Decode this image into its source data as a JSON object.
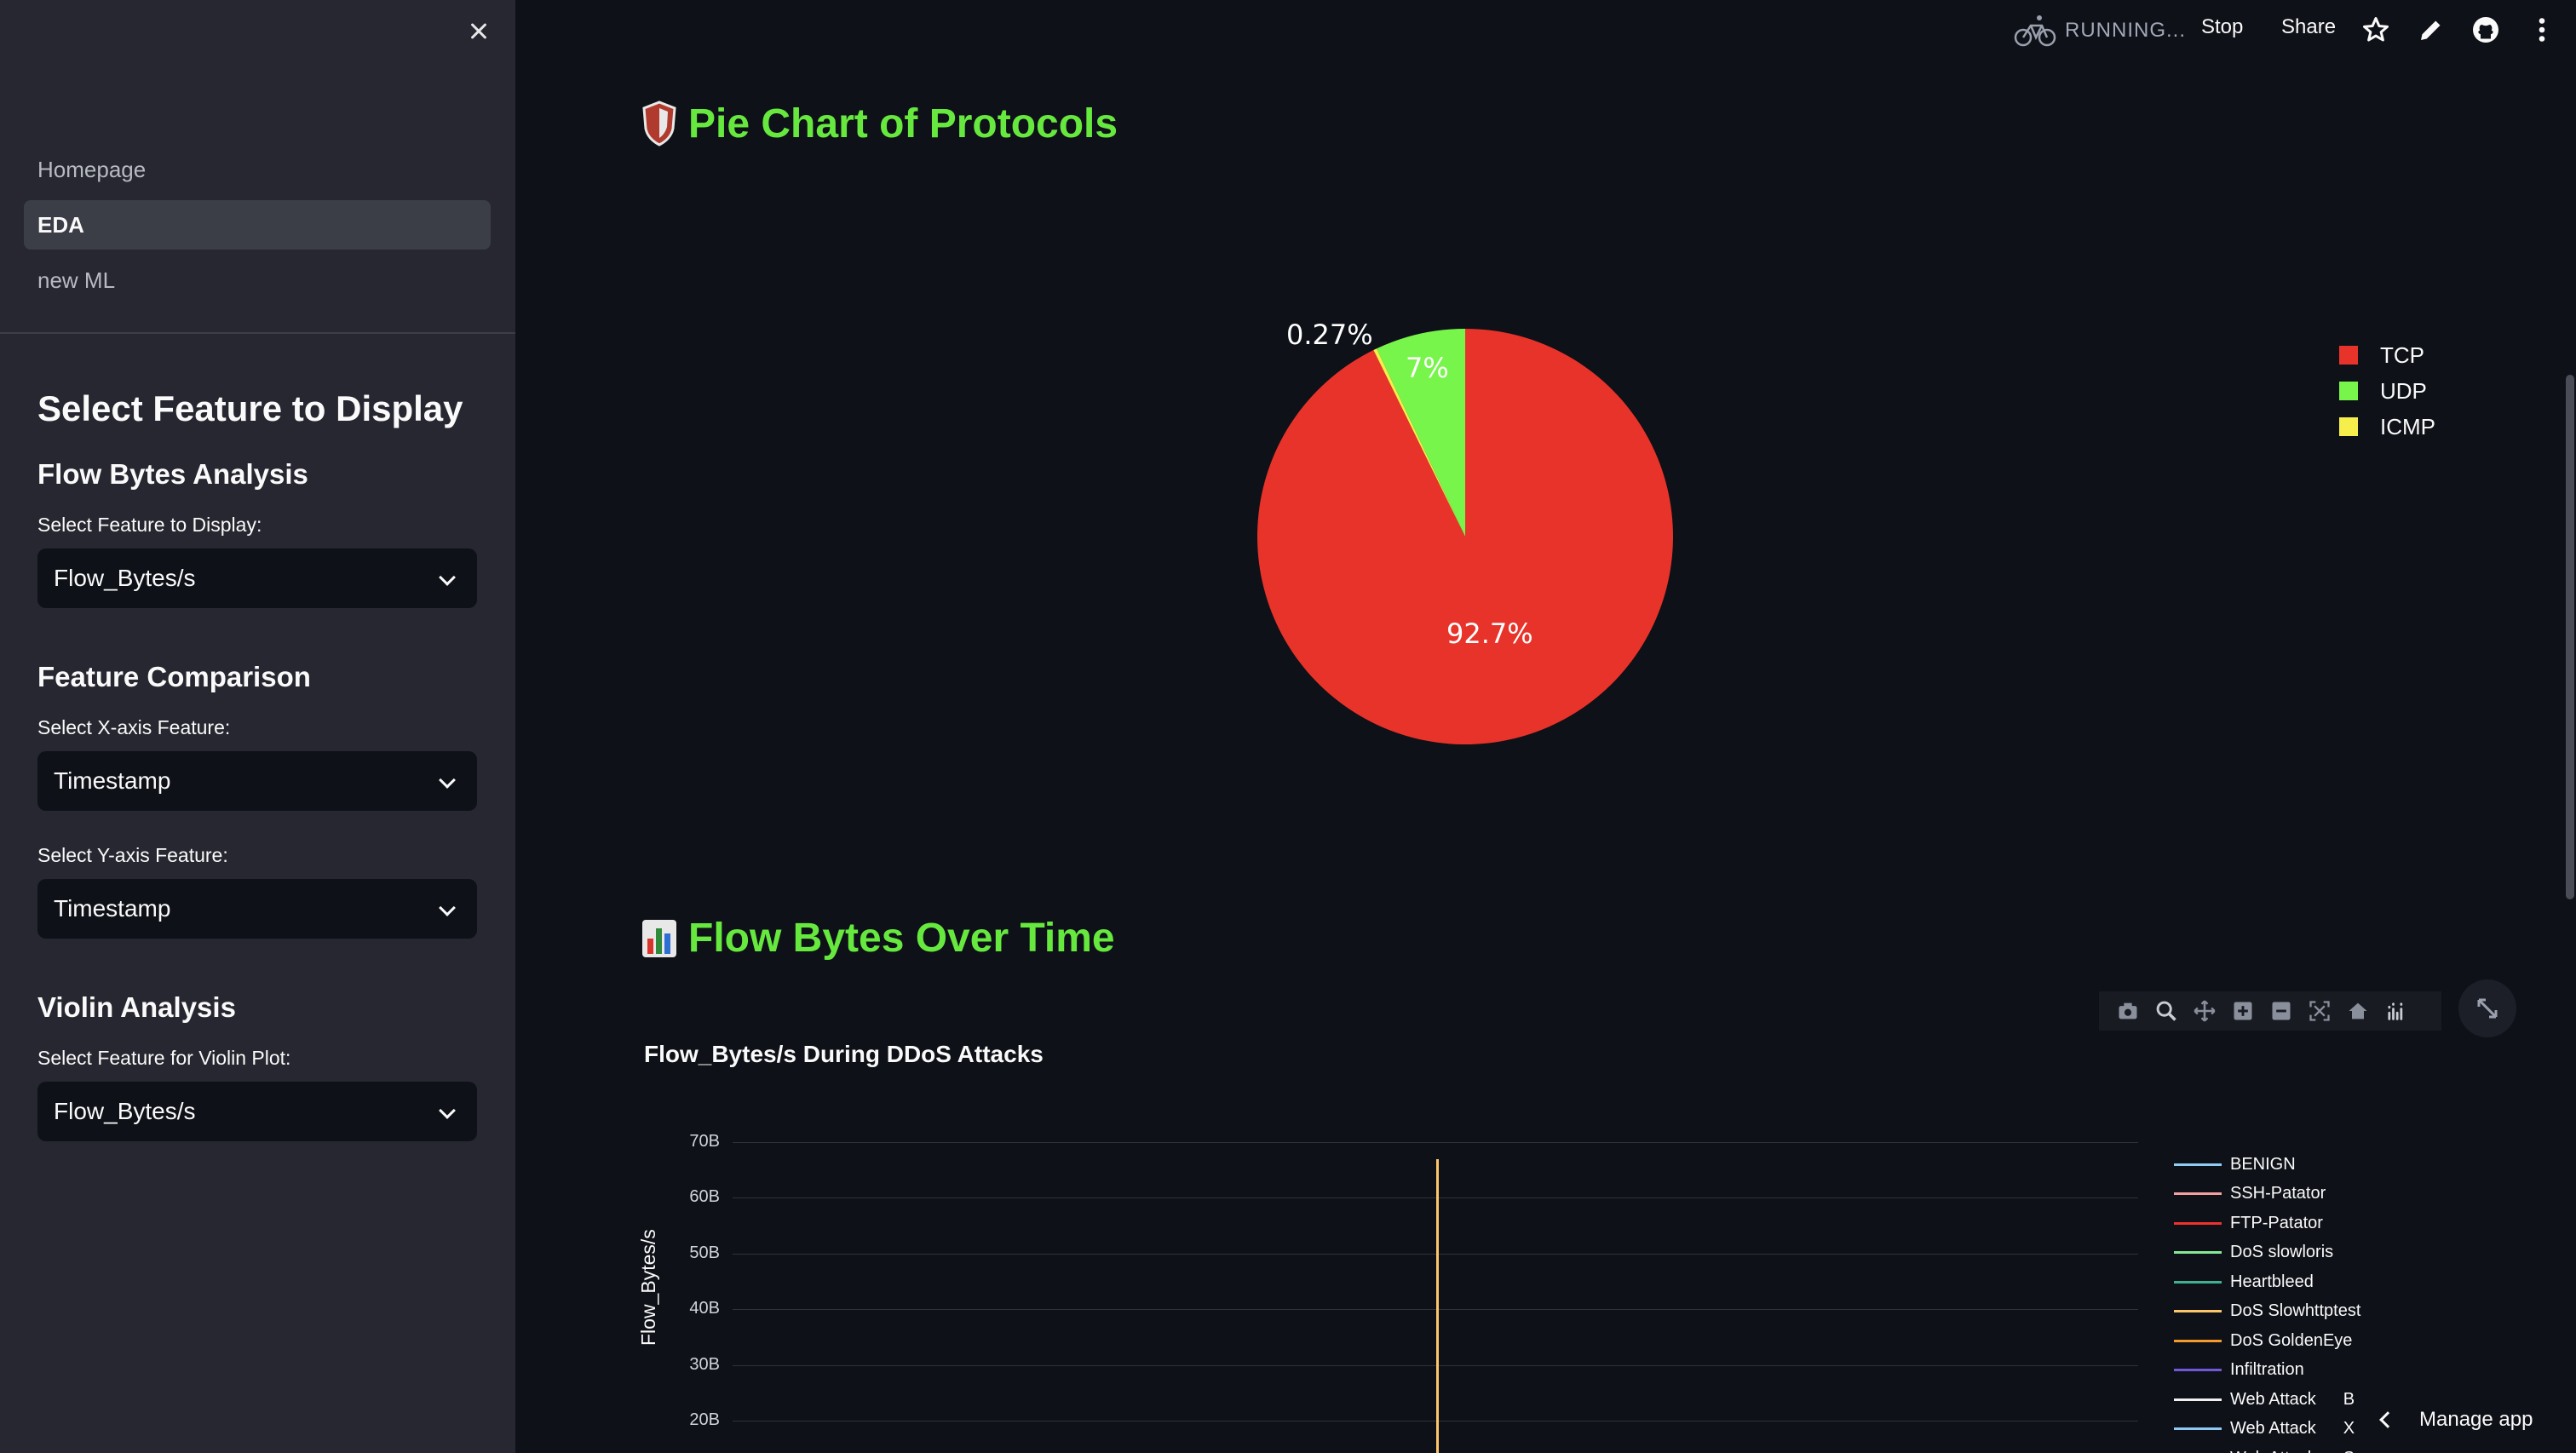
{
  "header": {
    "status": "RUNNING...",
    "stop_label": "Stop",
    "share_label": "Share"
  },
  "sidebar": {
    "nav_items": [
      {
        "label": "Homepage"
      },
      {
        "label": "EDA",
        "active": true
      },
      {
        "label": "new ML"
      }
    ],
    "title": "Select Feature to Display",
    "sections": {
      "flow_bytes": {
        "heading": "Flow Bytes Analysis",
        "label": "Select Feature to Display:",
        "value": "Flow_Bytes/s"
      },
      "feature_comparison": {
        "heading": "Feature Comparison",
        "x_label": "Select X-axis Feature:",
        "x_value": "Timestamp",
        "y_label": "Select Y-axis Feature:",
        "y_value": "Timestamp"
      },
      "violin": {
        "heading": "Violin Analysis",
        "label": "Select Feature for Violin Plot:",
        "value": "Flow_Bytes/s"
      }
    }
  },
  "main": {
    "pie_heading": "Pie Chart of Protocols",
    "line_heading": "Flow Bytes Over Time",
    "manage_app": "Manage app"
  },
  "colors": {
    "accent_green": "#66e83f",
    "tcp": "#e8332a",
    "udp": "#77f54b",
    "icmp": "#f5ee4b"
  },
  "chart_data": [
    {
      "type": "pie",
      "labels": [
        "TCP",
        "UDP",
        "ICMP"
      ],
      "values": [
        92.7,
        7,
        0.27
      ],
      "slice_labels": [
        "92.7%",
        "7%",
        "0.27%"
      ],
      "legend_position": "right"
    },
    {
      "type": "line",
      "title": "Flow_Bytes/s During DDoS Attacks",
      "ylabel": "Flow_Bytes/s",
      "y_ticks": [
        "20B",
        "30B",
        "40B",
        "50B",
        "60B",
        "70B"
      ],
      "ylim": [
        20000000000,
        70000000000
      ],
      "series": [
        {
          "name": "BENIGN",
          "color": "#8ecdf7"
        },
        {
          "name": "SSH-Patator",
          "color": "#f4a0a0"
        },
        {
          "name": "FTP-Patator",
          "color": "#f0312d"
        },
        {
          "name": "DoS slowloris",
          "color": "#86e896"
        },
        {
          "name": "Heartbleed",
          "color": "#3fb092"
        },
        {
          "name": "DoS Slowhttptest",
          "color": "#fdc66b"
        },
        {
          "name": "DoS GoldenEye",
          "color": "#f79a2d"
        },
        {
          "name": "Infiltration",
          "color": "#7158d8"
        },
        {
          "name": "Web Attack",
          "suffix": "B",
          "color": "#f0f0f0"
        },
        {
          "name": "Web Attack",
          "suffix": "X",
          "color": "#8fc8f5"
        },
        {
          "name": "Web Attack",
          "suffix": "S",
          "color": "#5a8ee0"
        }
      ],
      "highlight": {
        "series": "DoS Slowhttptest",
        "peak": 67000000000
      },
      "legend_position": "right"
    }
  ]
}
